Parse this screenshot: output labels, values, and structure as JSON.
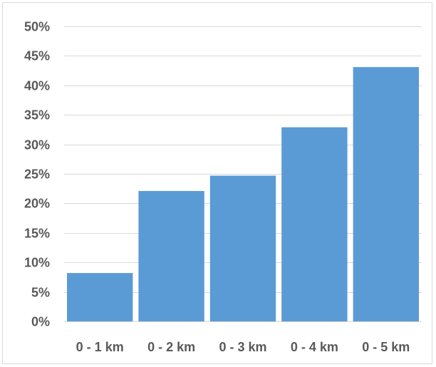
{
  "chart_data": {
    "type": "bar",
    "title": "",
    "xlabel": "",
    "ylabel": "",
    "categories": [
      "0 - 1 km",
      "0 - 2 km",
      "0 - 3 km",
      "0 - 4 km",
      "0 - 5 km"
    ],
    "values": [
      8.2,
      22.1,
      24.7,
      32.9,
      43.1
    ],
    "ylim": [
      0,
      50
    ],
    "yticks": [
      0,
      5,
      10,
      15,
      20,
      25,
      30,
      35,
      40,
      45,
      50
    ],
    "ytick_labels": [
      "0%",
      "5%",
      "10%",
      "15%",
      "20%",
      "25%",
      "30%",
      "35%",
      "40%",
      "45%",
      "50%"
    ],
    "grid": true,
    "legend": "none",
    "bar_color": "#5b9bd5"
  }
}
